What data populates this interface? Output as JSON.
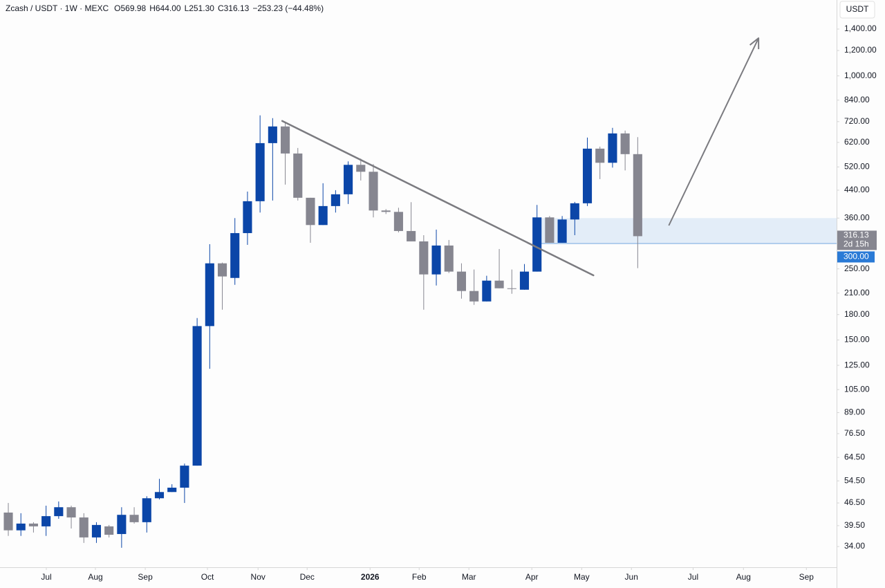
{
  "chart_data": {
    "type": "candlestick",
    "symbol": "Zcash / USDT · 1W · MEXC",
    "ohlc_header": [
      "O569.98",
      "H644.00",
      "L251.30",
      "C316.13",
      "−253.23 (−44.48%)"
    ],
    "currency": "USDT",
    "countdown": "2d 15h",
    "up_color": "#0b46a8",
    "down_color": "#868690",
    "log_scale": true,
    "grid": false,
    "ylim": [
      29.3,
      1725
    ],
    "yticks": [
      {
        "value": 1400,
        "label": "1,400.00"
      },
      {
        "value": 1200,
        "label": "1,200.00"
      },
      {
        "value": 1000,
        "label": "1,000.00"
      },
      {
        "value": 840,
        "label": "840.00"
      },
      {
        "value": 720,
        "label": "720.00"
      },
      {
        "value": 620,
        "label": "620.00"
      },
      {
        "value": 520,
        "label": "520.00"
      },
      {
        "value": 440,
        "label": "440.00"
      },
      {
        "value": 360,
        "label": "360.00"
      },
      {
        "value": 250,
        "label": "250.00"
      },
      {
        "value": 210,
        "label": "210.00"
      },
      {
        "value": 180,
        "label": "180.00"
      },
      {
        "value": 150,
        "label": "150.00"
      },
      {
        "value": 125,
        "label": "125.00"
      },
      {
        "value": 105,
        "label": "105.00"
      },
      {
        "value": 89,
        "label": "89.00"
      },
      {
        "value": 76.5,
        "label": "76.50"
      },
      {
        "value": 64.5,
        "label": "64.50"
      },
      {
        "value": 54.5,
        "label": "54.50"
      },
      {
        "value": 46.5,
        "label": "46.50"
      },
      {
        "value": 39.5,
        "label": "39.50"
      },
      {
        "value": 34,
        "label": "34.00"
      }
    ],
    "xlim": [
      -0.66,
      65.8
    ],
    "xticks": [
      {
        "value": 3.02,
        "label": "Jul"
      },
      {
        "value": 6.92,
        "label": "Aug"
      },
      {
        "value": 10.88,
        "label": "Sep"
      },
      {
        "value": 15.82,
        "label": "Oct"
      },
      {
        "value": 19.84,
        "label": "Nov"
      },
      {
        "value": 23.74,
        "label": "Dec"
      },
      {
        "value": 28.74,
        "label": "2026"
      },
      {
        "value": 32.64,
        "label": "Feb"
      },
      {
        "value": 36.59,
        "label": "Mar"
      },
      {
        "value": 41.59,
        "label": "Apr"
      },
      {
        "value": 45.55,
        "label": "May"
      },
      {
        "value": 49.5,
        "label": "Jun"
      },
      {
        "value": 54.4,
        "label": "Jul"
      },
      {
        "value": 58.4,
        "label": "Aug"
      },
      {
        "value": 63.4,
        "label": "Sep"
      }
    ],
    "ohlc": [
      [
        43.4,
        46.5,
        36.7,
        38.2
      ],
      [
        38.2,
        43.2,
        36.7,
        40.1
      ],
      [
        40.1,
        40.5,
        37.6,
        39.3
      ],
      [
        39.3,
        45.6,
        36.7,
        42.3
      ],
      [
        42.3,
        47.0,
        41.5,
        45.1
      ],
      [
        45.1,
        45.6,
        38.7,
        41.9
      ],
      [
        41.9,
        43.2,
        34.9,
        36.3
      ],
      [
        36.3,
        40.5,
        34.9,
        39.7
      ],
      [
        39.3,
        39.7,
        36.3,
        37.0
      ],
      [
        37.2,
        45.1,
        33.7,
        42.7
      ],
      [
        42.7,
        45.1,
        40.1,
        40.5
      ],
      [
        40.5,
        48.8,
        37.6,
        48.1
      ],
      [
        48.1,
        55.3,
        47.7,
        50.3
      ],
      [
        50.3,
        53.2,
        50.3,
        51.9
      ],
      [
        51.9,
        61.7,
        46.5,
        60.8
      ],
      [
        60.8,
        175.6,
        60.8,
        165.7
      ],
      [
        165.7,
        298.5,
        121.9,
        260.1
      ],
      [
        260.1,
        261.5,
        186.4,
        236.7
      ],
      [
        234.2,
        360,
        222.9,
        323.2
      ],
      [
        323.2,
        435.6,
        297.0,
        406.4
      ],
      [
        406.4,
        752.9,
        374.6,
        616.9
      ],
      [
        616.9,
        738.2,
        408.4,
        695.4
      ],
      [
        695.4,
        720,
        457.9,
        572.6
      ],
      [
        572.6,
        595.8,
        408.4,
        416.6
      ],
      [
        416.6,
        416.6,
        301.5,
        342.5
      ],
      [
        342.5,
        462.4,
        342.5,
        392.5
      ],
      [
        392.5,
        440,
        374.6,
        427.1
      ],
      [
        427.1,
        541.1,
        398.4,
        527.8
      ],
      [
        527.8,
        551.9,
        471.7,
        502.2
      ],
      [
        502.2,
        530.4,
        361.8,
        380.2
      ],
      [
        380.2,
        384.0,
        370.7,
        376.4
      ],
      [
        376.4,
        387.8,
        324.8,
        328.1
      ],
      [
        328.1,
        403.6,
        304.5,
        304.5
      ],
      [
        304.5,
        318.4,
        186.4,
        240.2
      ],
      [
        240.2,
        331.4,
        221.8,
        295.6
      ],
      [
        295.6,
        307.6,
        242.6,
        245.1
      ],
      [
        245.1,
        260.1,
        201.8,
        213.2
      ],
      [
        213.2,
        248.8,
        193.0,
        197.8
      ],
      [
        197.8,
        237.9,
        197.8,
        229.7
      ],
      [
        229.7,
        288.3,
        217.4,
        217.4
      ],
      [
        217.4,
        248.8,
        209.0,
        216.3
      ],
      [
        215.2,
        258.8,
        215.2,
        245.1
      ],
      [
        245.1,
        395.7,
        245.1,
        361.8
      ],
      [
        361.8,
        365.4,
        301.5,
        301.5
      ],
      [
        301.5,
        365.4,
        301.5,
        356.4
      ],
      [
        356.4,
        404.4,
        318.4,
        400.4
      ],
      [
        400.4,
        642,
        392.5,
        592.9
      ],
      [
        592.9,
        601.6,
        476.4,
        535.7
      ],
      [
        535.7,
        688.5,
        517.4,
        661.4
      ],
      [
        661.4,
        675,
        507.1,
        569.98
      ],
      [
        569.98,
        644,
        251.3,
        316.13
      ]
    ],
    "zone": {
      "low": {
        "value": 300,
        "label": "300.00"
      },
      "high": 360,
      "start": 42.2,
      "color": "#e3edf8",
      "line_color": "#9cc0e8",
      "label_color": "#2a7ad6"
    },
    "trendline": {
      "x": [
        21.76,
        46.48
      ],
      "y": [
        723.5,
        238.6
      ],
      "color": "#7b7b80"
    },
    "arrow": {
      "x": [
        52.47,
        59.6
      ],
      "y": [
        341.3,
        1312
      ],
      "color": "#7b7b80"
    }
  }
}
